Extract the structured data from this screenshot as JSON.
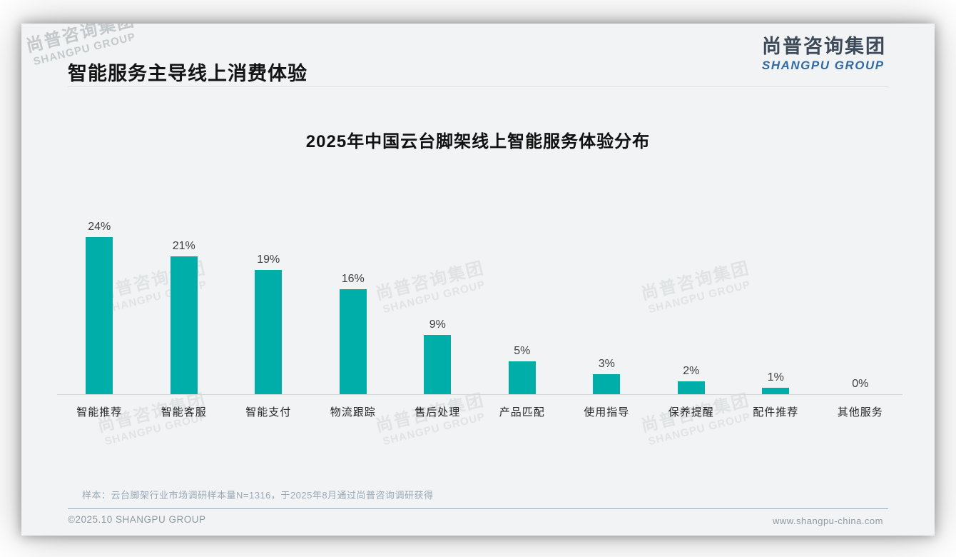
{
  "page": {
    "title": "智能服务主导线上消费体验",
    "logo": {
      "cn": "尚普咨询集团",
      "en": "SHANGPU GROUP"
    },
    "watermark": {
      "cn": "尚普咨询集团",
      "en": "SHANGPU GROUP"
    },
    "sample_note": "样本：云台脚架行业市场调研样本量N=1316，于2025年8月通过尚普咨询调研获得",
    "footer_left": "©2025.10 SHANGPU GROUP",
    "footer_right": "www.shangpu-china.com"
  },
  "chart_data": {
    "type": "bar",
    "title": "2025年中国云台脚架线上智能服务体验分布",
    "categories": [
      "智能推荐",
      "智能客服",
      "智能支付",
      "物流跟踪",
      "售后处理",
      "产品匹配",
      "使用指导",
      "保养提醒",
      "配件推荐",
      "其他服务"
    ],
    "values": [
      24,
      21,
      19,
      16,
      9,
      5,
      3,
      2,
      1,
      0
    ],
    "data_labels": [
      "24%",
      "21%",
      "19%",
      "16%",
      "9%",
      "5%",
      "3%",
      "2%",
      "1%",
      "0%"
    ],
    "unit": "%",
    "bar_color": "#00AEA9",
    "ylim": [
      0,
      26
    ],
    "grid": false,
    "legend": "none",
    "xlabel": "",
    "ylabel": ""
  }
}
